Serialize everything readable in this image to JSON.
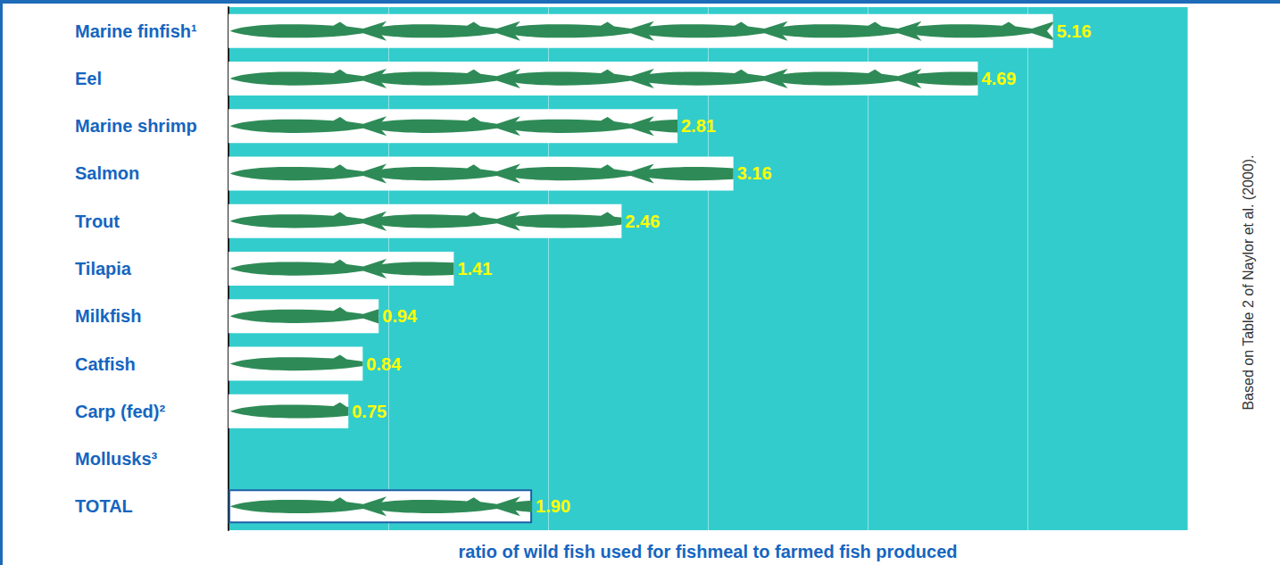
{
  "chart_data": {
    "type": "bar",
    "orientation": "horizontal",
    "categories": [
      "Marine finfish¹",
      "Eel",
      "Marine shrimp",
      "Salmon",
      "Trout",
      "Tilapia",
      "Milkfish",
      "Catfish",
      "Carp (fed)²",
      "Mollusks³",
      "TOTAL"
    ],
    "values": [
      5.16,
      4.69,
      2.81,
      3.16,
      2.46,
      1.41,
      0.94,
      0.84,
      0.75,
      null,
      1.9
    ],
    "value_labels": [
      "5.16",
      "4.69",
      "2.81",
      "3.16",
      "2.46",
      "1.41",
      "0.94",
      "0.84",
      "0.75",
      null,
      "1.90"
    ],
    "xlabel": "ratio of wild fish used for fishmeal to farmed fish produced",
    "source": "Based on Table 2 of Naylor et al. (2000).",
    "xlim": [
      0,
      6
    ],
    "xticks": [
      0,
      1,
      2,
      3,
      4,
      5,
      6
    ],
    "grid": true,
    "data_labels": true,
    "tick_labels": "y",
    "color": "#2e8b57"
  }
}
